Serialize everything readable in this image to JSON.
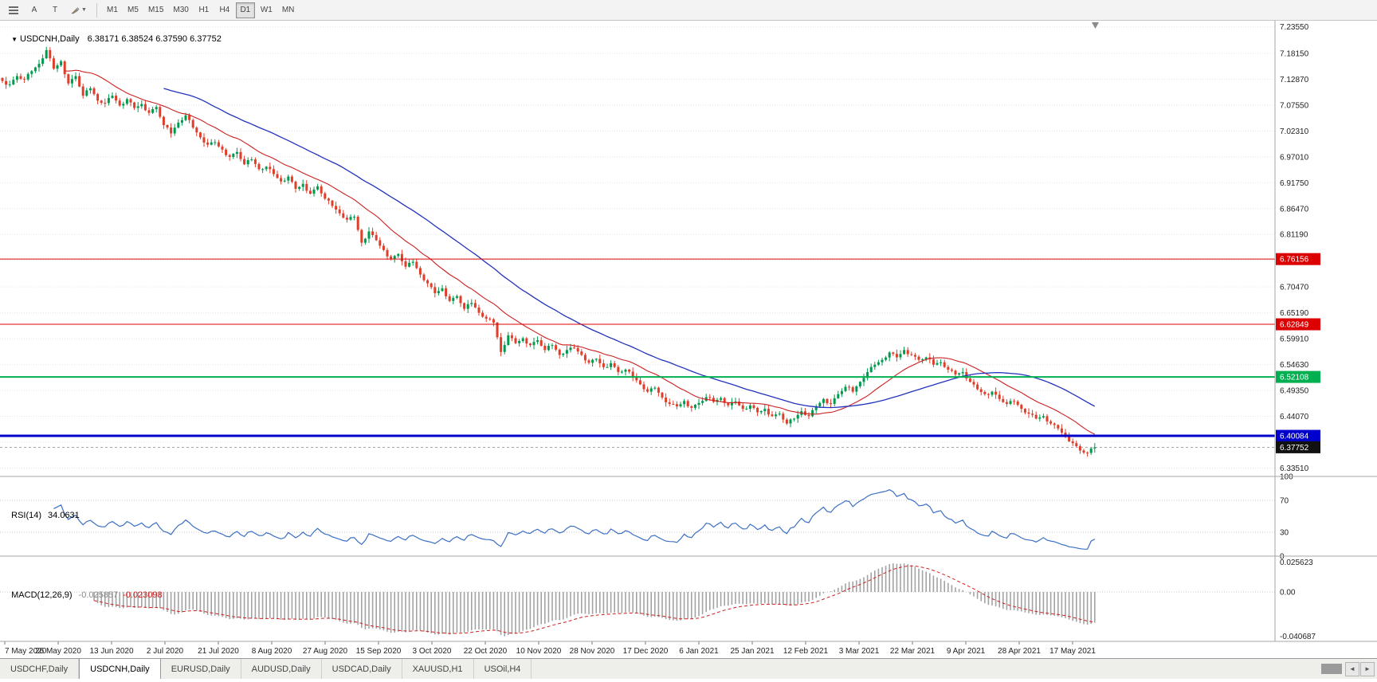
{
  "toolbar": {
    "timeframes": [
      "M1",
      "M5",
      "M15",
      "M30",
      "H1",
      "H4",
      "D1",
      "W1",
      "MN"
    ],
    "active_timeframe": "D1",
    "icons": [
      {
        "name": "pointer-tool",
        "label": "A"
      },
      {
        "name": "text-tool",
        "label": "T"
      }
    ]
  },
  "tabs": {
    "items": [
      "USDCHF,Daily",
      "USDCNH,Daily",
      "EURUSD,Daily",
      "AUDUSD,Daily",
      "USDCAD,Daily",
      "XAUUSD,H1",
      "USOil,H4"
    ],
    "active": "USDCNH,Daily",
    "scroll_left_icon": "◄",
    "scroll_right_icon": "►"
  },
  "chart_data": {
    "type": "candlestick",
    "symbol_title": "USDCNH,Daily",
    "ohlc_text": "6.38171 6.38524 6.37590 6.37752",
    "ohlc": {
      "open": "6.38171",
      "high": "6.38524",
      "low": "6.37590",
      "close": "6.37752"
    },
    "current_price": "6.37752",
    "price_axis_range": [
      6.318,
      7.248
    ],
    "price_axis_ticks": [
      "7.23550",
      "7.18150",
      "7.12870",
      "7.07550",
      "7.02310",
      "6.97010",
      "6.91750",
      "6.86470",
      "6.81190",
      "6.70470",
      "6.65190",
      "6.59910",
      "6.54630",
      "6.49350",
      "6.44070",
      "6.33510"
    ],
    "hidden_grid_ticks": [
      6.7591,
      6.3879
    ],
    "horizontal_levels": [
      {
        "price": 6.76156,
        "label": "6.76156",
        "color": "#dd0000",
        "width": 1
      },
      {
        "price": 6.62849,
        "label": "6.62849",
        "color": "#dd0000",
        "width": 1
      },
      {
        "price": 6.52108,
        "label": "6.52108",
        "color": "#00b050",
        "width": 2
      },
      {
        "price": 6.40084,
        "label": "6.40084",
        "color": "#0000cc",
        "width": 3
      }
    ],
    "x_labels": [
      "7 May 2020",
      "26 May 2020",
      "13 Jun 2020",
      "2 Jul 2020",
      "21 Jul 2020",
      "8 Aug 2020",
      "27 Aug 2020",
      "15 Sep 2020",
      "3 Oct 2020",
      "22 Oct 2020",
      "10 Nov 2020",
      "28 Nov 2020",
      "17 Dec 2020",
      "6 Jan 2021",
      "25 Jan 2021",
      "12 Feb 2021",
      "3 Mar 2021",
      "22 Mar 2021",
      "9 Apr 2021",
      "28 Apr 2021",
      "17 May 2021"
    ],
    "closes": [
      7.125,
      7.118,
      7.135,
      7.128,
      7.145,
      7.16,
      7.188,
      7.15,
      7.165,
      7.12,
      7.135,
      7.095,
      7.11,
      7.085,
      7.08,
      7.095,
      7.075,
      7.088,
      7.07,
      7.078,
      7.06,
      7.072,
      7.035,
      7.018,
      7.04,
      7.055,
      7.03,
      7.01,
      6.995,
      7.0,
      6.985,
      6.97,
      6.98,
      6.955,
      6.965,
      6.945,
      6.95,
      6.935,
      6.92,
      6.93,
      6.905,
      6.915,
      6.895,
      6.91,
      6.885,
      6.87,
      6.855,
      6.842,
      6.848,
      6.795,
      6.818,
      6.8,
      6.78,
      6.762,
      6.772,
      6.746,
      6.756,
      6.73,
      6.712,
      6.692,
      6.702,
      6.676,
      6.686,
      6.66,
      6.672,
      6.652,
      6.64,
      6.632,
      6.572,
      6.606,
      6.59,
      6.6,
      6.586,
      6.596,
      6.576,
      6.586,
      6.566,
      6.576,
      6.58,
      6.566,
      6.55,
      6.558,
      6.541,
      6.549,
      6.531,
      6.536,
      6.521,
      6.506,
      6.491,
      6.499,
      6.479,
      6.466,
      6.461,
      6.472,
      6.458,
      6.468,
      6.48,
      6.47,
      6.478,
      6.463,
      6.471,
      6.456,
      6.463,
      6.449,
      6.456,
      6.441,
      6.446,
      6.426,
      6.436,
      6.451,
      6.441,
      6.461,
      6.476,
      6.466,
      6.486,
      6.501,
      6.491,
      6.511,
      6.531,
      6.546,
      6.556,
      6.571,
      6.561,
      6.576,
      6.566,
      6.556,
      6.561,
      6.546,
      6.551,
      6.536,
      6.526,
      6.531,
      6.511,
      6.496,
      6.486,
      6.491,
      6.476,
      6.466,
      6.471,
      6.456,
      6.446,
      6.436,
      6.441,
      6.426,
      6.416,
      6.401,
      6.386,
      6.371,
      6.366,
      6.3775
    ],
    "indicators": {
      "ma_fast": {
        "type": "sma",
        "period": 18,
        "color": "#cc2020"
      },
      "ma_slow": {
        "type": "sma",
        "period": 45,
        "color": "#2233bb"
      },
      "rsi": {
        "label": "RSI(14)",
        "value": "34.0631",
        "period": 14,
        "levels": [
          "100",
          "70",
          "30",
          "0"
        ],
        "color": "#3b6fc4"
      },
      "macd": {
        "label": "MACD(12,26,9)",
        "value_main": "-0.025857",
        "value_signal": "-0.023098",
        "scale_top": "0.025623",
        "scale_zero": "0.00",
        "scale_bottom": "-0.040687",
        "histogram_color": "#a3a3a3",
        "signal_color": "#cc2020"
      }
    }
  }
}
